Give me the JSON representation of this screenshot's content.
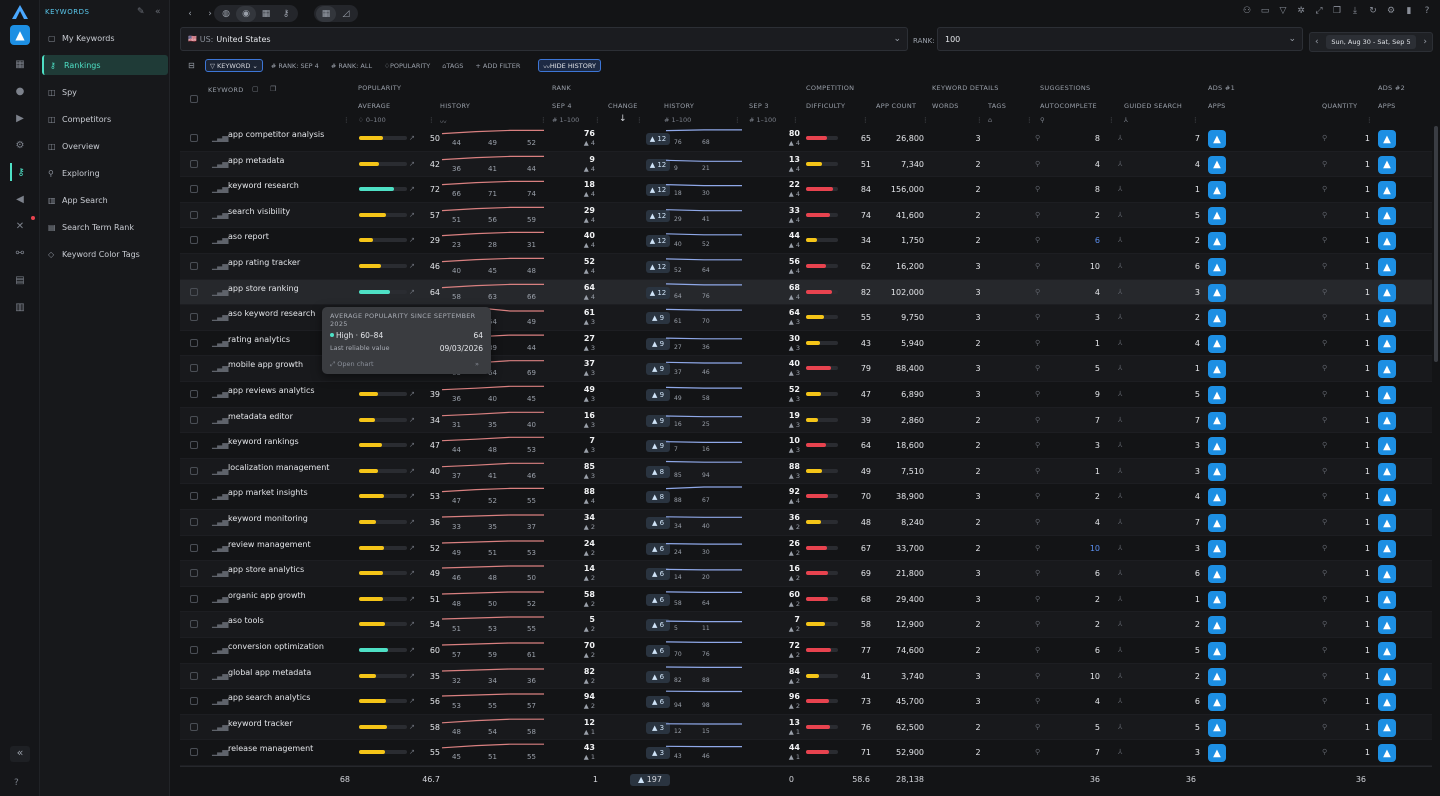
{
  "sidebar": {
    "section": "KEYWORDS",
    "items": [
      {
        "label": "My Keywords",
        "icon": "folder-icon"
      },
      {
        "label": "Rankings",
        "icon": "chart-icon",
        "active": true
      },
      {
        "label": "Spy",
        "icon": "spy-icon"
      },
      {
        "label": "Competitors",
        "icon": "competitors-icon"
      },
      {
        "label": "Overview",
        "icon": "overview-icon"
      },
      {
        "label": "Exploring",
        "icon": "explore-icon"
      },
      {
        "label": "App Search",
        "icon": "bar-chart-icon"
      },
      {
        "label": "Search Term Rank",
        "icon": "list-icon"
      },
      {
        "label": "Keyword Color Tags",
        "icon": "tag-icon"
      }
    ]
  },
  "toolbar": {
    "country_flag": "🇺🇸",
    "country_code": "US:",
    "country": "United States",
    "rank_label": "RANK:",
    "rank_value": "100",
    "date_range": "Sun, Aug 30 - Sat, Sep 5"
  },
  "filters": [
    "KEYWORD",
    "# RANK: SEP 4",
    "# RANK: ALL",
    "POPULARITY",
    "TAGS",
    "+ ADD FILTER"
  ],
  "hide_history": "HIDE HISTORY",
  "groups": {
    "popularity": "POPULARITY",
    "rank": "RANK",
    "competition": "COMPETITION",
    "keyword_details": "KEYWORD DETAILS",
    "suggestions": "SUGGESTIONS",
    "ads1": "ADS #1",
    "ads2": "ADS #2"
  },
  "columns": {
    "keyword": "KEYWORD",
    "average": "AVERAGE",
    "history": "HISTORY",
    "sep4": "SEP 4",
    "change": "CHANGE",
    "rank_history": "HISTORY",
    "sep3": "SEP 3",
    "difficulty": "DIFFICULTY",
    "app_count": "APP COUNT",
    "words": "WORDS",
    "tags": "TAGS",
    "autocomplete": "AUTOCOMPLETE",
    "guided_search": "GUIDED SEARCH",
    "apps": "APPS",
    "quantity": "QUANTITY",
    "apps2": "APPS"
  },
  "range_filters": {
    "pop": "0–100",
    "rank1": "1–100",
    "rank2": "1–100",
    "rank3": "1–100"
  },
  "rows": [
    {
      "kw": "app competitor analysis",
      "pop": 50,
      "h": [
        44,
        49,
        52
      ],
      "r4": 76,
      "r4s": 4,
      "chg": "12",
      "rh": [
        76,
        68
      ],
      "r3": 80,
      "r3s": 4,
      "diff": 65,
      "apps": "26,800",
      "words": 3,
      "ac": 8,
      "ac_hl": false,
      "gs": 7,
      "qty": 1
    },
    {
      "kw": "app metadata",
      "pop": 42,
      "h": [
        36,
        41,
        44
      ],
      "r4": 9,
      "r4s": 4,
      "chg": "12",
      "rh": [
        9,
        21
      ],
      "r3": 13,
      "r3s": 4,
      "diff": 51,
      "apps": "7,340",
      "words": 2,
      "ac": 4,
      "ac_hl": false,
      "gs": 4,
      "qty": 1
    },
    {
      "kw": "keyword research",
      "pop": 72,
      "h": [
        66,
        71,
        74
      ],
      "r4": 18,
      "r4s": 4,
      "chg": "12",
      "rh": [
        18,
        30
      ],
      "r3": 22,
      "r3s": 4,
      "diff": 84,
      "apps": "156,000",
      "words": 2,
      "ac": 8,
      "ac_hl": false,
      "gs": 1,
      "qty": 1
    },
    {
      "kw": "search visibility",
      "pop": 57,
      "h": [
        51,
        56,
        59
      ],
      "r4": 29,
      "r4s": 4,
      "chg": "12",
      "rh": [
        29,
        41
      ],
      "r3": 33,
      "r3s": 4,
      "diff": 74,
      "apps": "41,600",
      "words": 2,
      "ac": 2,
      "ac_hl": false,
      "gs": 5,
      "qty": 1
    },
    {
      "kw": "aso report",
      "pop": 29,
      "h": [
        23,
        28,
        31
      ],
      "r4": 40,
      "r4s": 4,
      "chg": "12",
      "rh": [
        40,
        52
      ],
      "r3": 44,
      "r3s": 4,
      "diff": 34,
      "apps": "1,750",
      "words": 2,
      "ac": 6,
      "ac_hl": true,
      "gs": 2,
      "qty": 1
    },
    {
      "kw": "app rating tracker",
      "pop": 46,
      "h": [
        40,
        45,
        48
      ],
      "r4": 52,
      "r4s": 4,
      "chg": "12",
      "rh": [
        52,
        64
      ],
      "r3": 56,
      "r3s": 4,
      "diff": 62,
      "apps": "16,200",
      "words": 3,
      "ac": 10,
      "ac_hl": false,
      "gs": 6,
      "qty": 1
    },
    {
      "kw": "app store ranking",
      "pop": 64,
      "h": [
        58,
        63,
        66
      ],
      "r4": 64,
      "r4s": 4,
      "chg": "12",
      "rh": [
        64,
        76
      ],
      "r3": 68,
      "r3s": 4,
      "diff": 82,
      "apps": "102,000",
      "words": 3,
      "ac": 4,
      "ac_hl": false,
      "gs": 3,
      "qty": 1
    },
    {
      "kw": "aso keyword research",
      "pop": 55,
      "h": [
        49,
        54,
        49
      ],
      "r4": 61,
      "r4s": 3,
      "chg": "9",
      "rh": [
        61,
        70
      ],
      "r3": 64,
      "r3s": 3,
      "diff": 55,
      "apps": "9,750",
      "words": 3,
      "ac": 3,
      "ac_hl": false,
      "gs": 2,
      "qty": 1
    },
    {
      "kw": "rating analytics",
      "pop": 39,
      "h": [
        33,
        39,
        44
      ],
      "r4": 27,
      "r4s": 3,
      "chg": "9",
      "rh": [
        27,
        36
      ],
      "r3": 30,
      "r3s": 3,
      "diff": 43,
      "apps": "5,940",
      "words": 2,
      "ac": 1,
      "ac_hl": false,
      "gs": 4,
      "qty": 1
    },
    {
      "kw": "mobile app growth",
      "pop": 69,
      "h": [
        63,
        64,
        69
      ],
      "r4": 37,
      "r4s": 3,
      "chg": "9",
      "rh": [
        37,
        46
      ],
      "r3": 40,
      "r3s": 3,
      "diff": 79,
      "apps": "88,400",
      "words": 3,
      "ac": 5,
      "ac_hl": false,
      "gs": 1,
      "qty": 1
    },
    {
      "kw": "app reviews analytics",
      "pop": 39,
      "h": [
        36,
        40,
        45
      ],
      "r4": 49,
      "r4s": 3,
      "chg": "9",
      "rh": [
        49,
        58
      ],
      "r3": 52,
      "r3s": 3,
      "diff": 47,
      "apps": "6,890",
      "words": 3,
      "ac": 9,
      "ac_hl": false,
      "gs": 5,
      "qty": 1
    },
    {
      "kw": "metadata editor",
      "pop": 34,
      "h": [
        31,
        35,
        40
      ],
      "r4": 16,
      "r4s": 3,
      "chg": "9",
      "rh": [
        16,
        25
      ],
      "r3": 19,
      "r3s": 3,
      "diff": 39,
      "apps": "2,860",
      "words": 2,
      "ac": 7,
      "ac_hl": false,
      "gs": 7,
      "qty": 1
    },
    {
      "kw": "keyword rankings",
      "pop": 47,
      "h": [
        44,
        48,
        53
      ],
      "r4": 7,
      "r4s": 3,
      "chg": "9",
      "rh": [
        7,
        16
      ],
      "r3": 10,
      "r3s": 3,
      "diff": 64,
      "apps": "18,600",
      "words": 2,
      "ac": 3,
      "ac_hl": false,
      "gs": 3,
      "qty": 1
    },
    {
      "kw": "localization management",
      "pop": 40,
      "h": [
        37,
        41,
        46
      ],
      "r4": 85,
      "r4s": 3,
      "chg": "8",
      "rh": [
        85,
        94
      ],
      "r3": 88,
      "r3s": 3,
      "diff": 49,
      "apps": "7,510",
      "words": 2,
      "ac": 1,
      "ac_hl": false,
      "gs": 3,
      "qty": 1
    },
    {
      "kw": "app market insights",
      "pop": 53,
      "h": [
        47,
        52,
        55
      ],
      "r4": 88,
      "r4s": 4,
      "chg": "8",
      "rh": [
        88,
        67
      ],
      "r3": 92,
      "r3s": 4,
      "diff": 70,
      "apps": "38,900",
      "words": 3,
      "ac": 2,
      "ac_hl": false,
      "gs": 4,
      "qty": 1
    },
    {
      "kw": "keyword monitoring",
      "pop": 36,
      "h": [
        33,
        35,
        37
      ],
      "r4": 34,
      "r4s": 2,
      "chg": "6",
      "rh": [
        34,
        40
      ],
      "r3": 36,
      "r3s": 2,
      "diff": 48,
      "apps": "8,240",
      "words": 2,
      "ac": 4,
      "ac_hl": false,
      "gs": 7,
      "qty": 1
    },
    {
      "kw": "review management",
      "pop": 52,
      "h": [
        49,
        51,
        53
      ],
      "r4": 24,
      "r4s": 2,
      "chg": "6",
      "rh": [
        24,
        30
      ],
      "r3": 26,
      "r3s": 2,
      "diff": 67,
      "apps": "33,700",
      "words": 2,
      "ac": 10,
      "ac_hl": true,
      "gs": 3,
      "qty": 1
    },
    {
      "kw": "app store analytics",
      "pop": 49,
      "h": [
        46,
        48,
        50
      ],
      "r4": 14,
      "r4s": 2,
      "chg": "6",
      "rh": [
        14,
        20
      ],
      "r3": 16,
      "r3s": 2,
      "diff": 69,
      "apps": "21,800",
      "words": 3,
      "ac": 6,
      "ac_hl": false,
      "gs": 6,
      "qty": 1
    },
    {
      "kw": "organic app growth",
      "pop": 51,
      "h": [
        48,
        50,
        52
      ],
      "r4": 58,
      "r4s": 2,
      "chg": "6",
      "rh": [
        58,
        64
      ],
      "r3": 60,
      "r3s": 2,
      "diff": 68,
      "apps": "29,400",
      "words": 3,
      "ac": 2,
      "ac_hl": false,
      "gs": 1,
      "qty": 1
    },
    {
      "kw": "aso tools",
      "pop": 54,
      "h": [
        51,
        53,
        55
      ],
      "r4": 5,
      "r4s": 2,
      "chg": "6",
      "rh": [
        5,
        11
      ],
      "r3": 7,
      "r3s": 2,
      "diff": 58,
      "apps": "12,900",
      "words": 2,
      "ac": 2,
      "ac_hl": false,
      "gs": 2,
      "qty": 1
    },
    {
      "kw": "conversion optimization",
      "pop": 60,
      "h": [
        57,
        59,
        61
      ],
      "r4": 70,
      "r4s": 2,
      "chg": "6",
      "rh": [
        70,
        76
      ],
      "r3": 72,
      "r3s": 2,
      "diff": 77,
      "apps": "74,600",
      "words": 2,
      "ac": 6,
      "ac_hl": false,
      "gs": 5,
      "qty": 1
    },
    {
      "kw": "global app metadata",
      "pop": 35,
      "h": [
        32,
        34,
        36
      ],
      "r4": 82,
      "r4s": 2,
      "chg": "6",
      "rh": [
        82,
        88
      ],
      "r3": 84,
      "r3s": 2,
      "diff": 41,
      "apps": "3,740",
      "words": 3,
      "ac": 10,
      "ac_hl": false,
      "gs": 2,
      "qty": 1
    },
    {
      "kw": "app search analytics",
      "pop": 56,
      "h": [
        53,
        55,
        57
      ],
      "r4": 94,
      "r4s": 2,
      "chg": "6",
      "rh": [
        94,
        98
      ],
      "r3": 96,
      "r3s": 2,
      "diff": 73,
      "apps": "45,700",
      "words": 3,
      "ac": 4,
      "ac_hl": false,
      "gs": 6,
      "qty": 1
    },
    {
      "kw": "keyword tracker",
      "pop": 58,
      "h": [
        48,
        54,
        58
      ],
      "r4": 12,
      "r4s": 1,
      "chg": "3",
      "rh": [
        12,
        15
      ],
      "r3": 13,
      "r3s": 1,
      "diff": 76,
      "apps": "62,500",
      "words": 2,
      "ac": 5,
      "ac_hl": false,
      "gs": 5,
      "qty": 1
    },
    {
      "kw": "release management",
      "pop": 55,
      "h": [
        45,
        51,
        55
      ],
      "r4": 43,
      "r4s": 1,
      "chg": "3",
      "rh": [
        43,
        46
      ],
      "r3": 44,
      "r3s": 1,
      "diff": 71,
      "apps": "52,900",
      "words": 2,
      "ac": 7,
      "ac_hl": false,
      "gs": 3,
      "qty": 1
    }
  ],
  "footer": {
    "count": "68",
    "avg_pop": "46.7",
    "sep4": "1",
    "change": "197",
    "sep3": "0",
    "difficulty": "58.6",
    "app_count": "28,138",
    "guided": "36",
    "apps": "36",
    "ads2": "36"
  },
  "tooltip": {
    "title": "AVERAGE POPULARITY SINCE SEPTEMBER 2025",
    "level": "High · 60–84",
    "value": "64",
    "reliable_label": "Last reliable value",
    "reliable_date": "09/03/2026",
    "open": "Open chart"
  },
  "colors": {
    "accent": "#4ee0c5",
    "yellow": "#f5c518",
    "red": "#e8434f",
    "blue": "#3d76d6"
  }
}
